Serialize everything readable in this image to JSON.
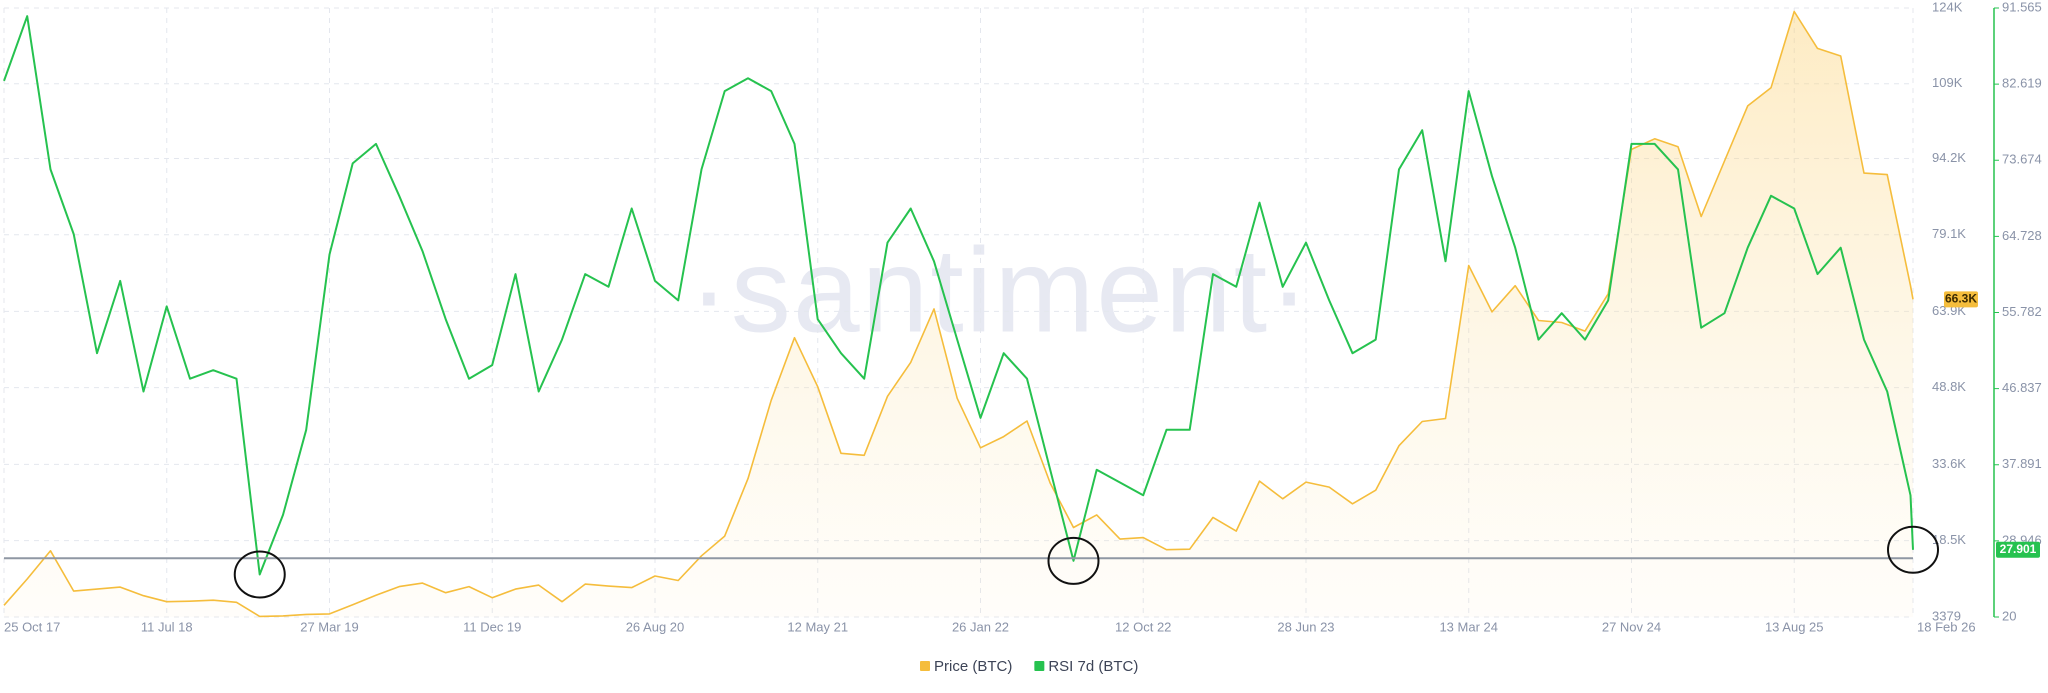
{
  "chart_data": {
    "type": "line",
    "watermark": "·santiment·",
    "x": [
      "2017-10-25",
      "2017-12-01",
      "2018-01-07",
      "2018-02-13",
      "2018-03-22",
      "2018-04-28",
      "2018-06-04",
      "2018-07-11",
      "2018-08-17",
      "2018-09-23",
      "2018-10-30",
      "2018-12-06",
      "2019-01-12",
      "2019-02-18",
      "2019-03-27",
      "2019-05-03",
      "2019-06-09",
      "2019-07-16",
      "2019-08-22",
      "2019-09-28",
      "2019-11-04",
      "2019-12-11",
      "2020-01-17",
      "2020-02-23",
      "2020-03-31",
      "2020-05-07",
      "2020-06-13",
      "2020-07-20",
      "2020-08-26",
      "2020-10-02",
      "2020-11-08",
      "2020-12-15",
      "2021-01-21",
      "2021-02-27",
      "2021-04-05",
      "2021-05-12",
      "2021-06-18",
      "2021-07-25",
      "2021-08-31",
      "2021-10-07",
      "2021-11-13",
      "2021-12-20",
      "2022-01-26",
      "2022-03-04",
      "2022-04-10",
      "2022-05-17",
      "2022-06-23",
      "2022-07-30",
      "2022-09-05",
      "2022-10-12",
      "2022-11-18",
      "2022-12-25",
      "2023-01-31",
      "2023-03-09",
      "2023-04-15",
      "2023-05-22",
      "2023-06-28",
      "2023-08-04",
      "2023-09-10",
      "2023-10-17",
      "2023-11-23",
      "2023-12-30",
      "2024-02-05",
      "2024-03-13",
      "2024-04-19",
      "2024-05-26",
      "2024-07-02",
      "2024-08-08",
      "2024-09-14",
      "2024-10-21",
      "2024-11-27",
      "2025-01-03",
      "2025-02-09",
      "2025-03-18",
      "2025-04-24",
      "2025-05-31",
      "2025-07-07",
      "2025-08-13",
      "2025-09-19",
      "2025-10-26",
      "2025-12-02",
      "2026-01-08",
      "2026-02-14",
      "2026-02-18"
    ],
    "xlim": [
      "2017-10-25",
      "2026-02-18"
    ],
    "xticks": [
      {
        "value": "2017-10-25",
        "label": "25 Oct 17"
      },
      {
        "value": "2018-07-11",
        "label": "11 Jul 18"
      },
      {
        "value": "2019-03-27",
        "label": "27 Mar 19"
      },
      {
        "value": "2019-12-11",
        "label": "11 Dec 19"
      },
      {
        "value": "2020-08-26",
        "label": "26 Aug 20"
      },
      {
        "value": "2021-05-12",
        "label": "12 May 21"
      },
      {
        "value": "2022-01-26",
        "label": "26 Jan 22"
      },
      {
        "value": "2022-10-12",
        "label": "12 Oct 22"
      },
      {
        "value": "2023-06-28",
        "label": "28 Jun 23"
      },
      {
        "value": "2024-03-13",
        "label": "13 Mar 24"
      },
      {
        "value": "2024-11-27",
        "label": "27 Nov 24"
      },
      {
        "value": "2025-08-13",
        "label": "13 Aug 25"
      },
      {
        "value": "2026-02-18",
        "label": "18 Feb 26"
      }
    ],
    "ylim": [
      3379,
      124000
    ],
    "yticks": [
      3379,
      {
        "value": 18500,
        "label": "18.5K"
      },
      {
        "value": 33600,
        "label": "33.6K"
      },
      {
        "value": 48800,
        "label": "48.8K"
      },
      {
        "value": 63900,
        "label": "63.9K"
      },
      {
        "value": 79100,
        "label": "79.1K"
      },
      {
        "value": 94200,
        "label": "94.2K"
      },
      {
        "value": 109000,
        "label": "109K"
      },
      {
        "value": 124000,
        "label": "124K"
      }
    ],
    "y2lim": [
      20,
      91.565
    ],
    "y2ticks": [
      20,
      28.946,
      37.891,
      46.837,
      55.782,
      64.728,
      73.674,
      82.619,
      91.565
    ],
    "grid": true,
    "reference_line": 26.9,
    "series": [
      {
        "name": "Price (BTC)",
        "color": "#f5bd3c",
        "last_value_label": "66.3K",
        "values": [
          5700,
          10900,
          16500,
          8500,
          8900,
          9300,
          7600,
          6400,
          6500,
          6700,
          6300,
          3500,
          3600,
          3900,
          4000,
          5800,
          7700,
          9400,
          10100,
          8200,
          9400,
          7200,
          8900,
          9700,
          6400,
          9900,
          9500,
          9200,
          11500,
          10600,
          15500,
          19400,
          30800,
          46300,
          58700,
          49000,
          35800,
          35400,
          47100,
          53800,
          64400,
          46700,
          36900,
          39100,
          42200,
          29900,
          21100,
          23600,
          18800,
          19100,
          16700,
          16800,
          23100,
          20400,
          30300,
          26800,
          30100,
          29100,
          25800,
          28500,
          37300,
          42100,
          42700,
          73000,
          63800,
          69000,
          62100,
          61700,
          60000,
          67400,
          96000,
          98100,
          96500,
          82700,
          93700,
          104600,
          108200,
          123300,
          116000,
          114500,
          91300,
          91000,
          69000,
          66300
        ]
      },
      {
        "name": "RSI 7d (BTC)",
        "color": "#26c24f",
        "axis": "y2",
        "last_value_label": "27.901",
        "values": [
          83,
          90.6,
          72.6,
          65,
          51,
          59.5,
          46.5,
          56.5,
          48,
          49,
          48,
          25,
          32,
          42,
          62.6,
          73.3,
          75.6,
          69.5,
          63,
          55,
          48,
          49.6,
          60.3,
          46.5,
          52.6,
          60.3,
          58.8,
          68,
          59.5,
          57.2,
          72.6,
          81.8,
          83.3,
          81.8,
          75.6,
          55,
          51,
          48,
          64,
          68,
          61.8,
          52.6,
          43.4,
          51,
          48,
          37.3,
          26.6,
          37.3,
          35.8,
          34.3,
          42,
          42,
          60.3,
          58.8,
          68.7,
          58.8,
          64,
          57.2,
          51,
          52.6,
          72.6,
          77.2,
          61.8,
          81.8,
          71.8,
          63.4,
          52.6,
          55.7,
          52.6,
          57.2,
          75.6,
          75.6,
          72.6,
          54,
          55.7,
          63.4,
          69.5,
          68,
          60.3,
          63.4,
          52.6,
          46.5,
          34.3,
          27.901
        ]
      }
    ]
  }
}
